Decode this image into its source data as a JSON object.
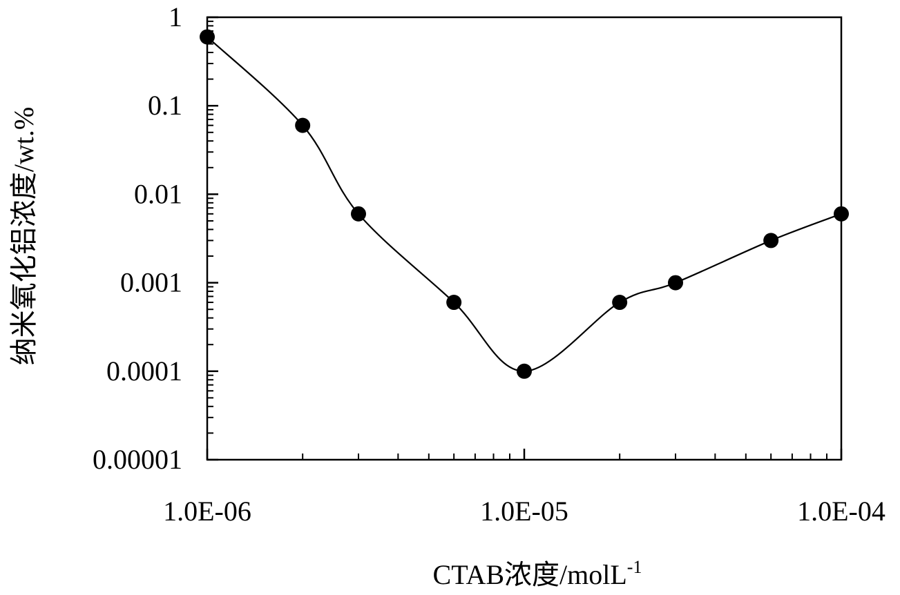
{
  "chart_data": {
    "type": "line",
    "xscale": "log",
    "yscale": "log",
    "xlim": [
      1e-06,
      0.0001
    ],
    "ylim": [
      1e-05,
      1
    ],
    "xlabel": "CTAB浓度/molL",
    "xlabel_superscript": "-1",
    "ylabel": "纳米氧化铝浓度/wt.%",
    "x_ticks": [
      {
        "value": 1e-06,
        "label": "1.0E-06"
      },
      {
        "value": 1e-05,
        "label": "1.0E-05"
      },
      {
        "value": 0.0001,
        "label": "1.0E-04"
      }
    ],
    "y_ticks": [
      {
        "value": 1,
        "label": "1"
      },
      {
        "value": 0.1,
        "label": "0.1"
      },
      {
        "value": 0.01,
        "label": "0.01"
      },
      {
        "value": 0.001,
        "label": "0.001"
      },
      {
        "value": 0.0001,
        "label": "0.0001"
      },
      {
        "value": 1e-05,
        "label": "0.00001"
      }
    ],
    "grid": false,
    "smooth": true,
    "series": [
      {
        "x": [
          1e-06,
          2e-06,
          3e-06,
          6e-06,
          1e-05,
          2e-05,
          3e-05,
          6e-05,
          0.0001
        ],
        "y": [
          0.6,
          0.06,
          0.006,
          0.0006,
          0.0001,
          0.0006,
          0.001,
          0.003,
          0.006
        ],
        "color": "#000000",
        "marker": "circle"
      }
    ]
  }
}
